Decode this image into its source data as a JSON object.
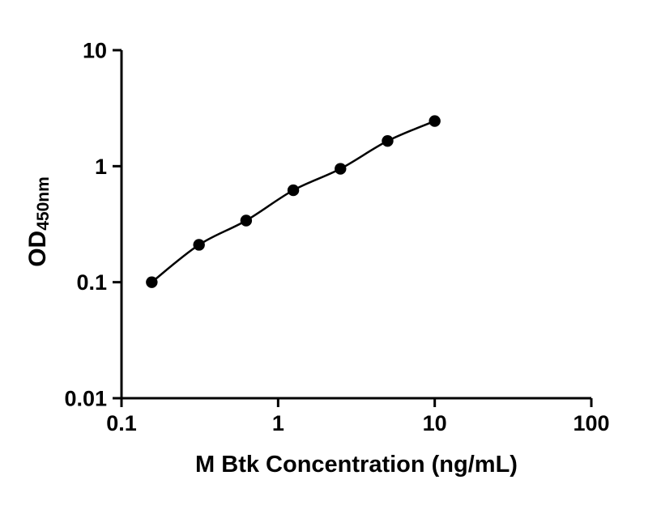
{
  "chart_data": {
    "type": "scatter",
    "title": "",
    "xlabel": "M Btk Concentration (ng/mL)",
    "ylabel_main": "OD",
    "ylabel_sub": "450nm",
    "x_scale": "log",
    "y_scale": "log",
    "xlim": [
      0.1,
      100
    ],
    "ylim": [
      0.01,
      10
    ],
    "x_ticks": [
      0.1,
      1,
      10,
      100
    ],
    "x_tick_labels": [
      "0.1",
      "1",
      "10",
      "100"
    ],
    "y_ticks": [
      0.01,
      0.1,
      1,
      10
    ],
    "y_tick_labels": [
      "0.01",
      "0.1",
      "1",
      "10"
    ],
    "grid": false,
    "legend": "none",
    "series": [
      {
        "x": [
          0.156,
          0.3125,
          0.625,
          1.25,
          2.5,
          5,
          10
        ],
        "y": [
          0.1,
          0.21,
          0.34,
          0.62,
          0.95,
          1.65,
          2.45
        ],
        "marker": "circle",
        "line": true,
        "color": "#000000"
      }
    ],
    "colors": {
      "axis": "#000000",
      "marker": "#000000",
      "line": "#000000",
      "background": "#ffffff"
    }
  }
}
